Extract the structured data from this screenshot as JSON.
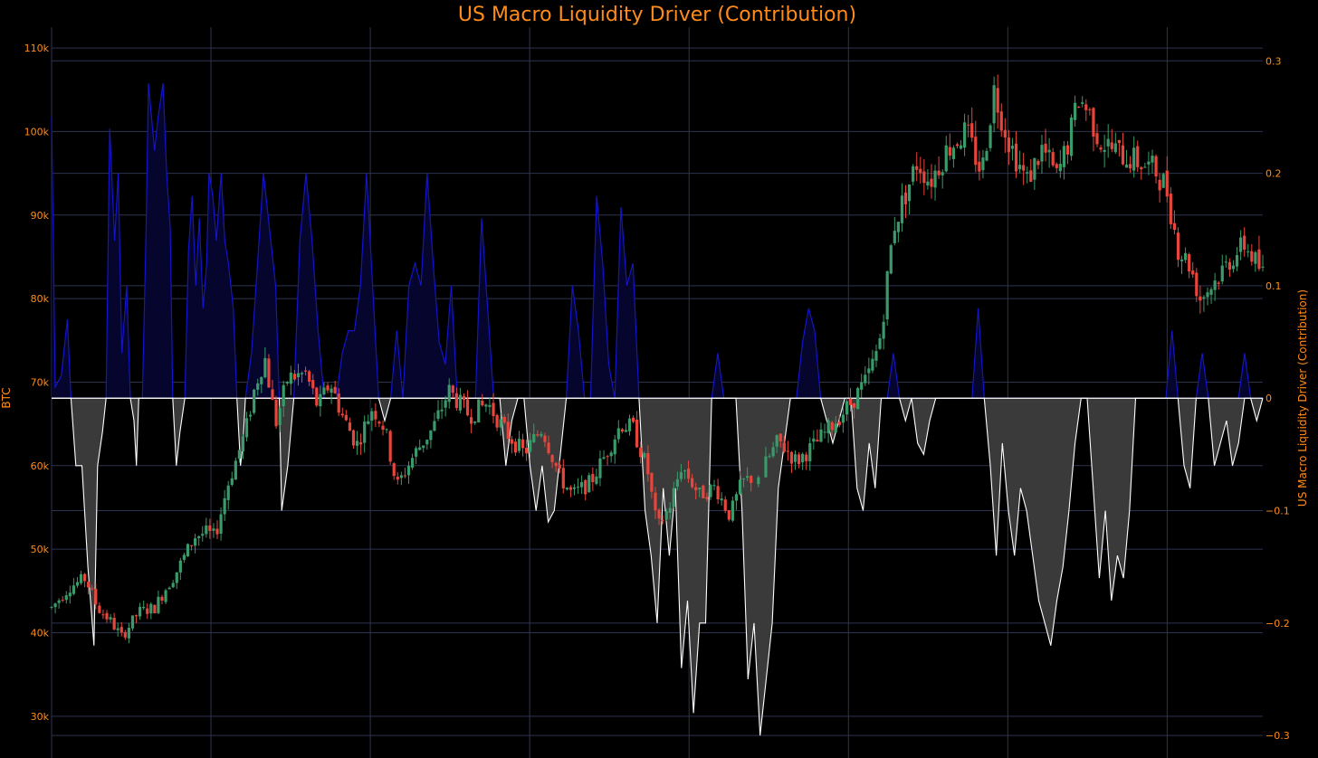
{
  "chart_data": {
    "type": "candlestick+area",
    "title": "US Macro Liquidity Driver (Contribution)",
    "ylabel_left": "BTC",
    "ylabel_right": "US Macro Liquidity Driver (Contribution)",
    "ylim_left": [
      25000,
      112500
    ],
    "ylim_right": [
      -0.32,
      0.33
    ],
    "left_ticks": [
      {
        "v": 30000,
        "label": "30k"
      },
      {
        "v": 40000,
        "label": "40k"
      },
      {
        "v": 50000,
        "label": "50k"
      },
      {
        "v": 60000,
        "label": "60k"
      },
      {
        "v": 70000,
        "label": "70k"
      },
      {
        "v": 80000,
        "label": "80k"
      },
      {
        "v": 90000,
        "label": "90k"
      },
      {
        "v": 100000,
        "label": "100k"
      },
      {
        "v": 110000,
        "label": "110k"
      }
    ],
    "right_ticks": [
      {
        "v": 0.3,
        "label": "0.3"
      },
      {
        "v": 0.2,
        "label": "0.2"
      },
      {
        "v": 0.1,
        "label": "0.1"
      },
      {
        "v": 0,
        "label": "0"
      },
      {
        "v": -0.1,
        "label": "−0.1"
      },
      {
        "v": -0.2,
        "label": "−0.2"
      },
      {
        "v": -0.3,
        "label": "−0.3"
      }
    ],
    "vertical_grid_count": 8,
    "grid": true,
    "colors": {
      "background": "#000000",
      "text": "#ff8c1a",
      "grid": "#2e3450",
      "positive_line": "#1414c8",
      "positive_fill": "#05052e",
      "negative_line": "#ffffff",
      "negative_fill": "#3a3a3a",
      "candle_up": "#3a9a6a",
      "candle_down": "#e8463c"
    },
    "btc_anchors": [
      [
        0,
        43000
      ],
      [
        0.015,
        45500
      ],
      [
        0.028,
        46500
      ],
      [
        0.038,
        43000
      ],
      [
        0.048,
        41500
      ],
      [
        0.058,
        39500
      ],
      [
        0.072,
        42500
      ],
      [
        0.085,
        43000
      ],
      [
        0.095,
        45500
      ],
      [
        0.102,
        47000
      ],
      [
        0.118,
        51500
      ],
      [
        0.128,
        52000
      ],
      [
        0.135,
        51500
      ],
      [
        0.145,
        57500
      ],
      [
        0.16,
        64000
      ],
      [
        0.168,
        69500
      ],
      [
        0.176,
        73000
      ],
      [
        0.185,
        65000
      ],
      [
        0.195,
        70500
      ],
      [
        0.21,
        71000
      ],
      [
        0.22,
        67000
      ],
      [
        0.23,
        70000
      ],
      [
        0.24,
        66000
      ],
      [
        0.252,
        62500
      ],
      [
        0.265,
        67000
      ],
      [
        0.275,
        64500
      ],
      [
        0.285,
        57500
      ],
      [
        0.3,
        61500
      ],
      [
        0.315,
        64500
      ],
      [
        0.328,
        69000
      ],
      [
        0.345,
        66000
      ],
      [
        0.36,
        67500
      ],
      [
        0.375,
        64000
      ],
      [
        0.39,
        61500
      ],
      [
        0.405,
        64500
      ],
      [
        0.42,
        58500
      ],
      [
        0.43,
        56500
      ],
      [
        0.445,
        58000
      ],
      [
        0.458,
        61500
      ],
      [
        0.47,
        65000
      ],
      [
        0.48,
        64500
      ],
      [
        0.492,
        59500
      ],
      [
        0.5,
        52500
      ],
      [
        0.51,
        55000
      ],
      [
        0.52,
        60000
      ],
      [
        0.535,
        56500
      ],
      [
        0.548,
        57500
      ],
      [
        0.56,
        54000
      ],
      [
        0.57,
        58000
      ],
      [
        0.585,
        59000
      ],
      [
        0.6,
        63000
      ],
      [
        0.615,
        60500
      ],
      [
        0.63,
        62500
      ],
      [
        0.645,
        65000
      ],
      [
        0.66,
        67500
      ],
      [
        0.672,
        70000
      ],
      [
        0.68,
        73000
      ],
      [
        0.685,
        76000
      ],
      [
        0.688,
        80000
      ],
      [
        0.695,
        88500
      ],
      [
        0.705,
        92500
      ],
      [
        0.715,
        96500
      ],
      [
        0.725,
        94000
      ],
      [
        0.74,
        98000
      ],
      [
        0.755,
        100000
      ],
      [
        0.768,
        95000
      ],
      [
        0.778,
        105000
      ],
      [
        0.79,
        99000
      ],
      [
        0.805,
        94000
      ],
      [
        0.818,
        98000
      ],
      [
        0.83,
        94500
      ],
      [
        0.84,
        99000
      ],
      [
        0.848,
        104000
      ],
      [
        0.856,
        102500
      ],
      [
        0.865,
        99000
      ],
      [
        0.88,
        97500
      ],
      [
        0.895,
        96500
      ],
      [
        0.91,
        95500
      ],
      [
        0.92,
        93500
      ],
      [
        0.93,
        86000
      ],
      [
        0.94,
        84000
      ],
      [
        0.948,
        80000
      ],
      [
        0.96,
        82000
      ],
      [
        0.972,
        84500
      ],
      [
        0.985,
        86500
      ],
      [
        1,
        83000
      ]
    ],
    "liquidity_anchors": [
      [
        0,
        0.25
      ],
      [
        0.003,
        0.01
      ],
      [
        0.008,
        0.02
      ],
      [
        0.013,
        0.07
      ],
      [
        0.016,
        0.0
      ],
      [
        0.02,
        -0.06
      ],
      [
        0.025,
        -0.06
      ],
      [
        0.03,
        -0.15
      ],
      [
        0.035,
        -0.22
      ],
      [
        0.038,
        -0.06
      ],
      [
        0.042,
        -0.03
      ],
      [
        0.045,
        0.0
      ],
      [
        0.048,
        0.24
      ],
      [
        0.052,
        0.14
      ],
      [
        0.055,
        0.2
      ],
      [
        0.058,
        0.04
      ],
      [
        0.062,
        0.1
      ],
      [
        0.065,
        0.0
      ],
      [
        0.068,
        -0.02
      ],
      [
        0.07,
        -0.06
      ],
      [
        0.072,
        0.0
      ],
      [
        0.075,
        0.0
      ],
      [
        0.078,
        0.15
      ],
      [
        0.08,
        0.28
      ],
      [
        0.085,
        0.22
      ],
      [
        0.088,
        0.25
      ],
      [
        0.092,
        0.28
      ],
      [
        0.095,
        0.2
      ],
      [
        0.098,
        0.15
      ],
      [
        0.1,
        0.0
      ],
      [
        0.103,
        -0.06
      ],
      [
        0.106,
        -0.03
      ],
      [
        0.11,
        0.0
      ],
      [
        0.113,
        0.13
      ],
      [
        0.116,
        0.18
      ],
      [
        0.119,
        0.1
      ],
      [
        0.122,
        0.16
      ],
      [
        0.125,
        0.08
      ],
      [
        0.128,
        0.12
      ],
      [
        0.13,
        0.2
      ],
      [
        0.133,
        0.18
      ],
      [
        0.136,
        0.14
      ],
      [
        0.14,
        0.2
      ],
      [
        0.143,
        0.14
      ],
      [
        0.146,
        0.12
      ],
      [
        0.15,
        0.08
      ],
      [
        0.153,
        0.0
      ],
      [
        0.156,
        -0.06
      ],
      [
        0.158,
        -0.04
      ],
      [
        0.16,
        0.0
      ],
      [
        0.165,
        0.04
      ],
      [
        0.17,
        0.12
      ],
      [
        0.175,
        0.2
      ],
      [
        0.18,
        0.15
      ],
      [
        0.185,
        0.1
      ],
      [
        0.188,
        0.0
      ],
      [
        0.19,
        -0.1
      ],
      [
        0.195,
        -0.06
      ],
      [
        0.2,
        0.0
      ],
      [
        0.205,
        0.14
      ],
      [
        0.21,
        0.2
      ],
      [
        0.215,
        0.14
      ],
      [
        0.22,
        0.06
      ],
      [
        0.225,
        0.0
      ],
      [
        0.23,
        0.0
      ],
      [
        0.235,
        0.0
      ],
      [
        0.24,
        0.04
      ],
      [
        0.245,
        0.06
      ],
      [
        0.25,
        0.06
      ],
      [
        0.255,
        0.1
      ],
      [
        0.26,
        0.2
      ],
      [
        0.265,
        0.1
      ],
      [
        0.27,
        0.0
      ],
      [
        0.275,
        -0.02
      ],
      [
        0.28,
        0.0
      ],
      [
        0.285,
        0.06
      ],
      [
        0.29,
        0.0
      ],
      [
        0.295,
        0.1
      ],
      [
        0.3,
        0.12
      ],
      [
        0.305,
        0.1
      ],
      [
        0.31,
        0.2
      ],
      [
        0.315,
        0.12
      ],
      [
        0.32,
        0.05
      ],
      [
        0.325,
        0.03
      ],
      [
        0.33,
        0.1
      ],
      [
        0.335,
        0.0
      ],
      [
        0.34,
        0.0
      ],
      [
        0.345,
        0.0
      ],
      [
        0.35,
        0.0
      ],
      [
        0.355,
        0.16
      ],
      [
        0.36,
        0.08
      ],
      [
        0.365,
        0.0
      ],
      [
        0.37,
        0.0
      ],
      [
        0.375,
        -0.06
      ],
      [
        0.38,
        -0.02
      ],
      [
        0.385,
        0.0
      ],
      [
        0.39,
        0.0
      ],
      [
        0.395,
        -0.06
      ],
      [
        0.4,
        -0.1
      ],
      [
        0.405,
        -0.06
      ],
      [
        0.41,
        -0.11
      ],
      [
        0.415,
        -0.1
      ],
      [
        0.42,
        -0.05
      ],
      [
        0.425,
        0.0
      ],
      [
        0.43,
        0.1
      ],
      [
        0.435,
        0.06
      ],
      [
        0.44,
        0.0
      ],
      [
        0.445,
        0.0
      ],
      [
        0.45,
        0.18
      ],
      [
        0.455,
        0.12
      ],
      [
        0.46,
        0.03
      ],
      [
        0.465,
        0.0
      ],
      [
        0.47,
        0.17
      ],
      [
        0.475,
        0.1
      ],
      [
        0.48,
        0.12
      ],
      [
        0.485,
        0.0
      ],
      [
        0.49,
        -0.1
      ],
      [
        0.495,
        -0.14
      ],
      [
        0.5,
        -0.2
      ],
      [
        0.505,
        -0.08
      ],
      [
        0.51,
        -0.14
      ],
      [
        0.515,
        -0.08
      ],
      [
        0.52,
        -0.24
      ],
      [
        0.525,
        -0.18
      ],
      [
        0.53,
        -0.28
      ],
      [
        0.535,
        -0.2
      ],
      [
        0.54,
        -0.2
      ],
      [
        0.545,
        0.0
      ],
      [
        0.55,
        0.04
      ],
      [
        0.555,
        0.0
      ],
      [
        0.56,
        0.0
      ],
      [
        0.565,
        0.0
      ],
      [
        0.57,
        -0.1
      ],
      [
        0.575,
        -0.25
      ],
      [
        0.58,
        -0.2
      ],
      [
        0.585,
        -0.3
      ],
      [
        0.59,
        -0.25
      ],
      [
        0.595,
        -0.2
      ],
      [
        0.6,
        -0.08
      ],
      [
        0.605,
        -0.04
      ],
      [
        0.61,
        0.0
      ],
      [
        0.615,
        0.0
      ],
      [
        0.62,
        0.05
      ],
      [
        0.625,
        0.08
      ],
      [
        0.63,
        0.06
      ],
      [
        0.635,
        0.0
      ],
      [
        0.64,
        -0.02
      ],
      [
        0.645,
        -0.04
      ],
      [
        0.65,
        -0.02
      ],
      [
        0.655,
        0.0
      ],
      [
        0.66,
        0.0
      ],
      [
        0.665,
        -0.08
      ],
      [
        0.67,
        -0.1
      ],
      [
        0.675,
        -0.04
      ],
      [
        0.68,
        -0.08
      ],
      [
        0.685,
        0.0
      ],
      [
        0.69,
        0.0
      ],
      [
        0.695,
        0.04
      ],
      [
        0.7,
        0.0
      ],
      [
        0.705,
        -0.02
      ],
      [
        0.71,
        0.0
      ],
      [
        0.715,
        -0.04
      ],
      [
        0.72,
        -0.05
      ],
      [
        0.725,
        -0.02
      ],
      [
        0.73,
        0.0
      ],
      [
        0.735,
        0.0
      ],
      [
        0.74,
        0.0
      ],
      [
        0.745,
        0.0
      ],
      [
        0.75,
        0.0
      ],
      [
        0.755,
        0.0
      ],
      [
        0.76,
        0.0
      ],
      [
        0.765,
        0.08
      ],
      [
        0.77,
        0.0
      ],
      [
        0.775,
        -0.06
      ],
      [
        0.78,
        -0.14
      ],
      [
        0.785,
        -0.04
      ],
      [
        0.79,
        -0.1
      ],
      [
        0.795,
        -0.14
      ],
      [
        0.8,
        -0.08
      ],
      [
        0.805,
        -0.1
      ],
      [
        0.81,
        -0.14
      ],
      [
        0.815,
        -0.18
      ],
      [
        0.82,
        -0.2
      ],
      [
        0.825,
        -0.22
      ],
      [
        0.83,
        -0.18
      ],
      [
        0.835,
        -0.15
      ],
      [
        0.84,
        -0.1
      ],
      [
        0.845,
        -0.04
      ],
      [
        0.85,
        0.0
      ],
      [
        0.855,
        0.0
      ],
      [
        0.86,
        -0.08
      ],
      [
        0.865,
        -0.16
      ],
      [
        0.87,
        -0.1
      ],
      [
        0.875,
        -0.18
      ],
      [
        0.88,
        -0.14
      ],
      [
        0.885,
        -0.16
      ],
      [
        0.89,
        -0.1
      ],
      [
        0.895,
        0.0
      ],
      [
        0.9,
        0.0
      ],
      [
        0.905,
        0.0
      ],
      [
        0.91,
        0.0
      ],
      [
        0.915,
        0.0
      ],
      [
        0.92,
        0.0
      ],
      [
        0.925,
        0.06
      ],
      [
        0.93,
        0.0
      ],
      [
        0.935,
        -0.06
      ],
      [
        0.94,
        -0.08
      ],
      [
        0.945,
        0.0
      ],
      [
        0.95,
        0.04
      ],
      [
        0.955,
        0.0
      ],
      [
        0.96,
        -0.06
      ],
      [
        0.965,
        -0.04
      ],
      [
        0.97,
        -0.02
      ],
      [
        0.975,
        -0.06
      ],
      [
        0.98,
        -0.04
      ],
      [
        0.985,
        0.04
      ],
      [
        0.99,
        0.0
      ],
      [
        0.995,
        -0.02
      ],
      [
        1,
        0.0
      ]
    ]
  }
}
